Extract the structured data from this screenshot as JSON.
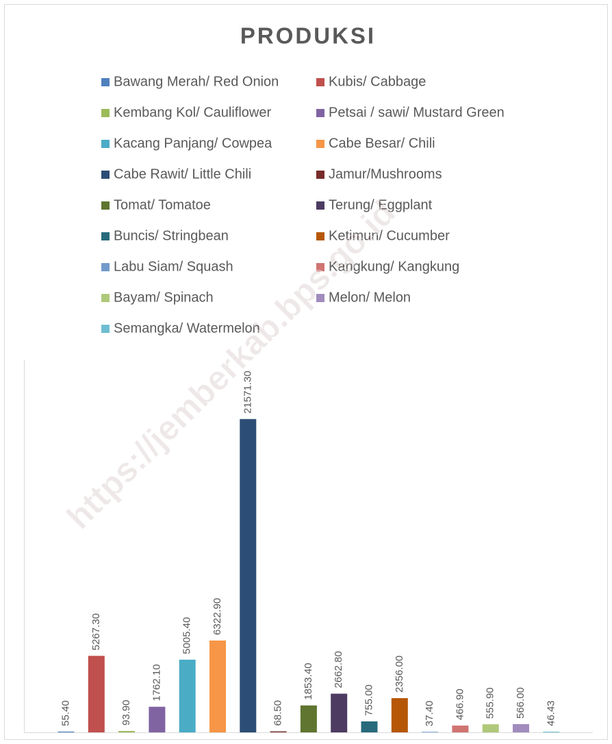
{
  "chart_data": {
    "type": "bar",
    "title": "PRODUKSI",
    "watermark": "https://jemberkab.bps.go.id",
    "ylim": [
      0,
      25000
    ],
    "series": [
      {
        "name": "Bawang Merah/ Red Onion",
        "color": "#4f81bd",
        "values": [
          55.4
        ],
        "value_labels": [
          "55.40"
        ]
      },
      {
        "name": "Kubis/ Cabbage",
        "color": "#c0504d",
        "values": [
          5267.3
        ],
        "value_labels": [
          "5267.30"
        ]
      },
      {
        "name": "Kembang Kol/ Cauliflower",
        "color": "#9bbb59",
        "values": [
          93.9
        ],
        "value_labels": [
          "93.90"
        ]
      },
      {
        "name": "Petsai / sawi/ Mustard Green",
        "color": "#8064a2",
        "values": [
          1762.1
        ],
        "value_labels": [
          "1762.10"
        ]
      },
      {
        "name": "Kacang Panjang/ Cowpea",
        "color": "#4bacc6",
        "values": [
          5005.4
        ],
        "value_labels": [
          "5005.40"
        ]
      },
      {
        "name": "Cabe Besar/ Chili",
        "color": "#f79646",
        "values": [
          6322.9
        ],
        "value_labels": [
          "6322.90"
        ]
      },
      {
        "name": "Cabe Rawit/ Little Chili",
        "color": "#2c4d75",
        "values": [
          21571.3
        ],
        "value_labels": [
          "21571.30"
        ]
      },
      {
        "name": "Jamur/Mushrooms",
        "color": "#772c2a",
        "values": [
          68.5
        ],
        "value_labels": [
          "68.50"
        ]
      },
      {
        "name": "Tomat/ Tomatoe",
        "color": "#5f7530",
        "values": [
          1853.4
        ],
        "value_labels": [
          "1853.40"
        ]
      },
      {
        "name": "Terung/ Eggplant",
        "color": "#4d3b62",
        "values": [
          2662.8
        ],
        "value_labels": [
          "2662.80"
        ]
      },
      {
        "name": "Buncis/ Stringbean",
        "color": "#276a7c",
        "values": [
          755
        ],
        "value_labels": [
          "755.00"
        ]
      },
      {
        "name": "Ketimun/ Cucumber",
        "color": "#b65708",
        "values": [
          2356
        ],
        "value_labels": [
          "2356.00"
        ]
      },
      {
        "name": "Labu Siam/ Squash",
        "color": "#729aca",
        "values": [
          37.4
        ],
        "value_labels": [
          "37.40"
        ]
      },
      {
        "name": "Kangkung/ Kangkung",
        "color": "#d07472",
        "values": [
          466.9
        ],
        "value_labels": [
          "466.90"
        ]
      },
      {
        "name": "Bayam/ Spinach",
        "color": "#afc97a",
        "values": [
          555.9
        ],
        "value_labels": [
          "555.90"
        ]
      },
      {
        "name": "Melon/ Melon",
        "color": "#a18cbd",
        "values": [
          566
        ],
        "value_labels": [
          "566.00"
        ]
      },
      {
        "name": "Semangka/ Watermelon",
        "color": "#6fbdd1",
        "values": [
          46.43
        ],
        "value_labels": [
          "46.43"
        ]
      }
    ]
  }
}
